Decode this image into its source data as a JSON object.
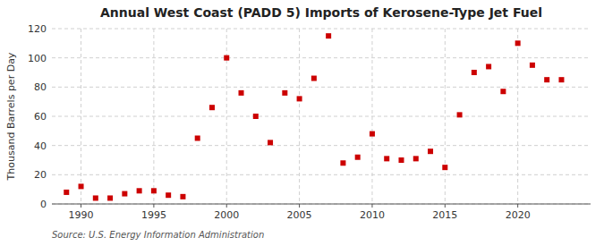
{
  "chart_data": {
    "type": "scatter",
    "title": "Annual West Coast (PADD 5) Imports of Kerosene-Type Jet Fuel",
    "ylabel": "Thousand Barrels per Day",
    "source": "Source: U.S. Energy Information Administration",
    "x": [
      1989,
      1990,
      1991,
      1992,
      1993,
      1994,
      1995,
      1996,
      1997,
      1998,
      1999,
      2000,
      2001,
      2002,
      2003,
      2004,
      2005,
      2006,
      2007,
      2008,
      2009,
      2010,
      2011,
      2012,
      2013,
      2014,
      2015,
      2016,
      2017,
      2018,
      2019,
      2020,
      2021,
      2022,
      2023
    ],
    "values": [
      8,
      12,
      4,
      4,
      7,
      9,
      9,
      6,
      5,
      45,
      66,
      100,
      76,
      60,
      42,
      76,
      72,
      86,
      115,
      28,
      32,
      48,
      31,
      30,
      31,
      36,
      25,
      61,
      90,
      94,
      77,
      110,
      95,
      85,
      85
    ],
    "color": "#cc0000",
    "marker": "square",
    "xlim": [
      1988,
      2025
    ],
    "xticks": [
      1990,
      1995,
      2000,
      2005,
      2010,
      2015,
      2020
    ],
    "ylim": [
      0,
      120
    ],
    "yticks": [
      0,
      20,
      40,
      60,
      80,
      100,
      120
    ],
    "grid": true
  }
}
